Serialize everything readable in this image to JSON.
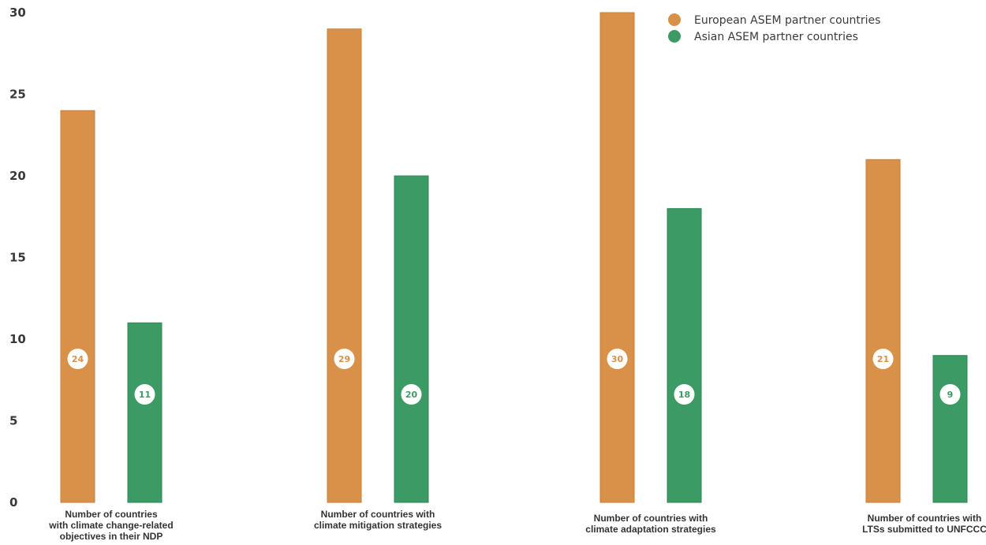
{
  "chart_data": {
    "type": "bar",
    "title": "",
    "xlabel": "",
    "ylabel": "",
    "ylim": [
      0,
      30
    ],
    "yticks": [
      0,
      5,
      10,
      15,
      20,
      25,
      30
    ],
    "grid": false,
    "legend_position": "top-right",
    "categories": [
      [
        "Number of countries",
        "with climate change-related",
        "objectives in their NDP"
      ],
      [
        "Number of countries with",
        "climate mitigation strategies"
      ],
      [
        "Number of countries with",
        "climate adaptation strategies"
      ],
      [
        "Number of countries with",
        "LTSs submitted to UNFCCC"
      ]
    ],
    "series": [
      {
        "name": "European ASEM partner countries",
        "color": "#d9914a",
        "label_color": "#d9914a",
        "values": [
          24,
          29,
          30,
          21
        ]
      },
      {
        "name": "Asian ASEM partner countries",
        "color": "#3c9b64",
        "label_color": "#3c9b64",
        "values": [
          11,
          20,
          18,
          9
        ]
      }
    ]
  }
}
